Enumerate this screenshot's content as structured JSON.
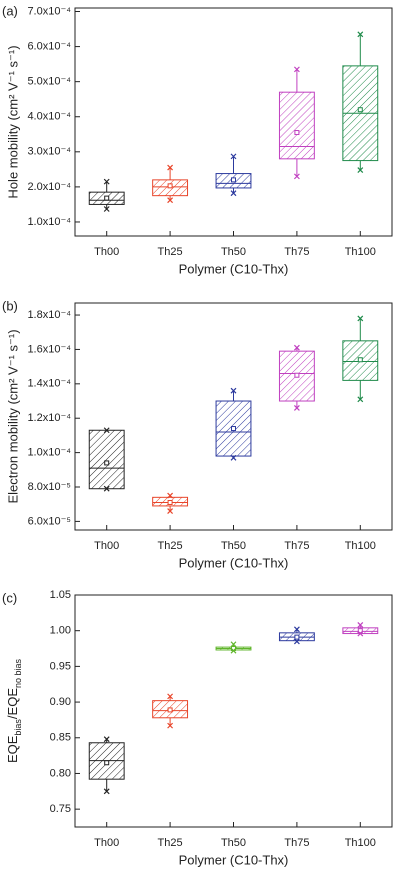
{
  "chart_data": [
    {
      "type": "box",
      "panel_label": "(a)",
      "y_label": "Hole mobility (cm² V⁻¹ s⁻¹)",
      "x_label": "Polymer (C10-Thx)",
      "categories": [
        "Th00",
        "Th25",
        "Th50",
        "Th75",
        "Th100"
      ],
      "colors": [
        "#222222",
        "#e8452a",
        "#2c3a9e",
        "#c040c0",
        "#1f8a4a"
      ],
      "boxes": [
        {
          "min": 0.000137,
          "q1": 0.00015,
          "median": 0.000162,
          "q3": 0.000185,
          "max": 0.000215,
          "mean": 0.000168
        },
        {
          "min": 0.000162,
          "q1": 0.000175,
          "median": 0.0002,
          "q3": 0.00022,
          "max": 0.000255,
          "mean": 0.000203
        },
        {
          "min": 0.000182,
          "q1": 0.000197,
          "median": 0.00021,
          "q3": 0.000238,
          "max": 0.000287,
          "mean": 0.00022
        },
        {
          "min": 0.00023,
          "q1": 0.00028,
          "median": 0.000315,
          "q3": 0.00047,
          "max": 0.000535,
          "mean": 0.000355
        },
        {
          "min": 0.000248,
          "q1": 0.000275,
          "median": 0.00041,
          "q3": 0.000545,
          "max": 0.000635,
          "mean": 0.00042
        }
      ],
      "ylim": [
        6e-05,
        0.00071
      ],
      "yticks": [
        {
          "value": 0.0001,
          "label": "1.0x10⁻⁴"
        },
        {
          "value": 0.0002,
          "label": "2.0x10⁻⁴"
        },
        {
          "value": 0.0003,
          "label": "3.0x10⁻⁴"
        },
        {
          "value": 0.0004,
          "label": "4.0x10⁻⁴"
        },
        {
          "value": 0.0005,
          "label": "5.0x10⁻⁴"
        },
        {
          "value": 0.0006,
          "label": "6.0x10⁻⁴"
        },
        {
          "value": 0.0007,
          "label": "7.0x10⁻⁴"
        }
      ]
    },
    {
      "type": "box",
      "panel_label": "(b)",
      "y_label": "Electron mobility (cm² V⁻¹ s⁻¹)",
      "x_label": "Polymer (C10-Thx)",
      "categories": [
        "Th00",
        "Th25",
        "Th50",
        "Th75",
        "Th100"
      ],
      "colors": [
        "#222222",
        "#e8452a",
        "#2c3a9e",
        "#c040c0",
        "#1f8a4a"
      ],
      "boxes": [
        {
          "min": 7.9e-05,
          "q1": 7.9e-05,
          "median": 9.1e-05,
          "q3": 0.000113,
          "max": 0.000113,
          "mean": 9.4e-05
        },
        {
          "min": 6.6e-05,
          "q1": 6.9e-05,
          "median": 7.1e-05,
          "q3": 7.4e-05,
          "max": 7.5e-05,
          "mean": 7.1e-05
        },
        {
          "min": 9.7e-05,
          "q1": 9.8e-05,
          "median": 0.000112,
          "q3": 0.00013,
          "max": 0.000136,
          "mean": 0.000114
        },
        {
          "min": 0.000126,
          "q1": 0.00013,
          "median": 0.000146,
          "q3": 0.000159,
          "max": 0.000161,
          "mean": 0.000145
        },
        {
          "min": 0.000131,
          "q1": 0.000142,
          "median": 0.000153,
          "q3": 0.000165,
          "max": 0.000178,
          "mean": 0.000154
        }
      ],
      "ylim": [
        5.5e-05,
        0.000187
      ],
      "yticks": [
        {
          "value": 6e-05,
          "label": "6.0x10⁻⁵"
        },
        {
          "value": 8e-05,
          "label": "8.0x10⁻⁵"
        },
        {
          "value": 0.0001,
          "label": "1.0x10⁻⁴"
        },
        {
          "value": 0.00012,
          "label": "1.2x10⁻⁴"
        },
        {
          "value": 0.00014,
          "label": "1.4x10⁻⁴"
        },
        {
          "value": 0.00016,
          "label": "1.6x10⁻⁴"
        },
        {
          "value": 0.00018,
          "label": "1.8x10⁻⁴"
        }
      ]
    },
    {
      "type": "box",
      "panel_label": "(c)",
      "y_label": [
        {
          "text": "EQE"
        },
        {
          "text": "bias",
          "sub": true
        },
        {
          "text": "/EQE"
        },
        {
          "text": "no bias",
          "sub": true
        }
      ],
      "x_label": "Polymer (C10-Thx)",
      "categories": [
        "Th00",
        "Th25",
        "Th50",
        "Th75",
        "Th100"
      ],
      "colors": [
        "#222222",
        "#e8452a",
        "#5fb52a",
        "#2c3a9e",
        "#c040c0"
      ],
      "boxes": [
        {
          "min": 0.775,
          "q1": 0.792,
          "median": 0.818,
          "q3": 0.843,
          "max": 0.848,
          "mean": 0.815
        },
        {
          "min": 0.867,
          "q1": 0.878,
          "median": 0.888,
          "q3": 0.902,
          "max": 0.908,
          "mean": 0.889
        },
        {
          "min": 0.972,
          "q1": 0.973,
          "median": 0.975,
          "q3": 0.977,
          "max": 0.981,
          "mean": 0.975
        },
        {
          "min": 0.985,
          "q1": 0.986,
          "median": 0.991,
          "q3": 0.997,
          "max": 1.002,
          "mean": 0.991
        },
        {
          "min": 0.996,
          "q1": 0.996,
          "median": 0.999,
          "q3": 1.004,
          "max": 1.008,
          "mean": 1.0
        }
      ],
      "ylim": [
        0.725,
        1.05
      ],
      "yticks": [
        {
          "value": 0.75,
          "label": "0.75"
        },
        {
          "value": 0.8,
          "label": "0.80"
        },
        {
          "value": 0.85,
          "label": "0.85"
        },
        {
          "value": 0.9,
          "label": "0.90"
        },
        {
          "value": 0.95,
          "label": "0.95"
        },
        {
          "value": 1.0,
          "label": "1.00"
        },
        {
          "value": 1.05,
          "label": "1.05"
        }
      ]
    }
  ]
}
